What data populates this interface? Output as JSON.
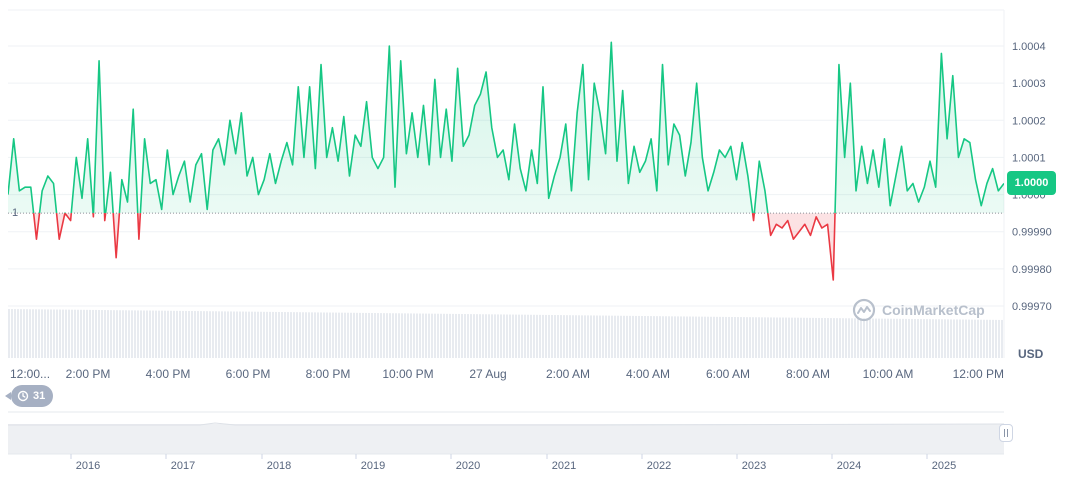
{
  "chart_data": {
    "type": "line",
    "currency": "USD",
    "current_price_label": "1.0000",
    "reference_line_label": "1",
    "reference_value": 0.99995,
    "ylim": [
      0.99965,
      1.0005
    ],
    "y_ticks": [
      "1.0004",
      "1.0003",
      "1.0002",
      "1.0001",
      "1.0000",
      "0.99990",
      "0.99980",
      "0.99970"
    ],
    "y_tick_values": [
      1.0004,
      1.0003,
      1.0002,
      1.0001,
      1.0,
      0.9999,
      0.9998,
      0.9997
    ],
    "x_ticks": [
      "12:00...",
      "2:00 PM",
      "4:00 PM",
      "6:00 PM",
      "8:00 PM",
      "10:00 PM",
      "27 Aug",
      "2:00 AM",
      "4:00 AM",
      "6:00 AM",
      "8:00 AM",
      "10:00 AM",
      "12:00 PM"
    ],
    "x_tick_hours": [
      0,
      2,
      4,
      6,
      8,
      10,
      12,
      14,
      16,
      18,
      20,
      22,
      24
    ],
    "x_hours_range": [
      0,
      24.9
    ],
    "values": [
      1.0,
      1.00015,
      1.00001,
      1.00002,
      1.00002,
      0.99988,
      1.00001,
      1.00005,
      1.00003,
      0.99988,
      0.99995,
      0.99993,
      1.0001,
      0.99999,
      1.00015,
      0.99994,
      1.00036,
      0.99993,
      1.00006,
      0.99983,
      1.00004,
      0.99998,
      1.00023,
      0.99988,
      1.00015,
      1.00003,
      1.00004,
      0.99996,
      1.00012,
      1.0,
      1.00005,
      1.00009,
      0.99998,
      1.00008,
      1.00011,
      0.99996,
      1.00012,
      1.00015,
      1.00008,
      1.0002,
      1.00011,
      1.00022,
      1.00005,
      1.0001,
      1.0,
      1.00004,
      1.00011,
      1.00003,
      1.00009,
      1.00014,
      1.00008,
      1.00029,
      1.0001,
      1.00029,
      1.00007,
      1.00035,
      1.0001,
      1.00018,
      1.00009,
      1.00021,
      1.00005,
      1.00016,
      1.00013,
      1.00025,
      1.0001,
      1.00007,
      1.0001,
      1.0004,
      1.00002,
      1.00036,
      1.00011,
      1.00022,
      1.0001,
      1.00024,
      1.00008,
      1.00031,
      1.0001,
      1.00023,
      1.00009,
      1.00034,
      1.00013,
      1.00016,
      1.00024,
      1.00027,
      1.00033,
      1.00018,
      1.0001,
      1.00012,
      1.00004,
      1.00019,
      1.00007,
      1.00001,
      1.00012,
      1.00003,
      1.00029,
      0.99999,
      1.00005,
      1.0001,
      1.00019,
      1.00001,
      1.00022,
      1.00035,
      1.00004,
      1.0003,
      1.00022,
      1.00011,
      1.00041,
      1.00009,
      1.00028,
      1.00003,
      1.00013,
      1.00006,
      1.00009,
      1.00015,
      1.00001,
      1.00035,
      1.00008,
      1.00019,
      1.00016,
      1.00005,
      1.00014,
      1.0003,
      1.0001,
      1.00001,
      1.00006,
      1.00012,
      1.0001,
      1.00013,
      1.00004,
      1.00014,
      1.00005,
      0.99993,
      1.00009,
      1.00001,
      0.99989,
      0.99992,
      0.99991,
      0.99993,
      0.99988,
      0.9999,
      0.99992,
      0.99989,
      0.99994,
      0.99991,
      0.99992,
      0.99977,
      1.00035,
      1.0001,
      1.0003,
      1.00001,
      1.00013,
      1.00003,
      1.00012,
      1.00002,
      1.00015,
      0.99997,
      1.00005,
      1.00013,
      1.00001,
      1.00003,
      0.99998,
      1.00002,
      1.00009,
      1.00002,
      1.00038,
      1.00015,
      1.00032,
      1.0001,
      1.00015,
      1.00014,
      1.00004,
      0.99997,
      1.00003,
      1.00007,
      1.00001,
      1.00003
    ],
    "volume_label": "",
    "navigator_years": [
      "2016",
      "2017",
      "2018",
      "2019",
      "2020",
      "2021",
      "2022",
      "2023",
      "2024",
      "2025"
    ],
    "colors": {
      "up": "#16c784",
      "down": "#ea3943",
      "grid": "#eff2f5",
      "axis_text": "#58667e",
      "volume": "#e8ebf0",
      "navigator": "#eef0f3"
    }
  },
  "ui": {
    "watermark": "CoinMarketCap",
    "history_count": "31"
  }
}
